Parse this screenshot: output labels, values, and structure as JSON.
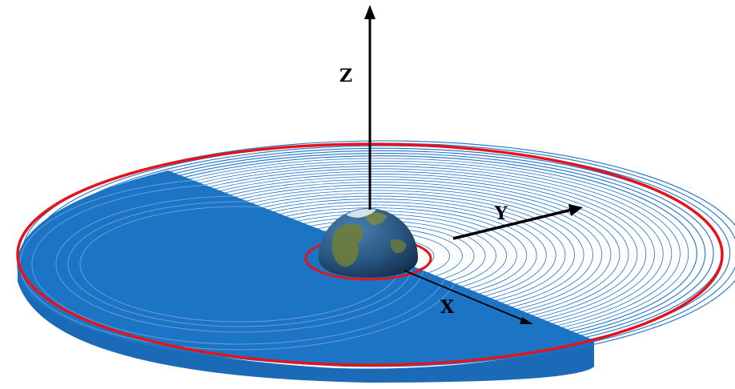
{
  "axes": {
    "x_label": "X",
    "y_label": "Y",
    "z_label": "Z"
  },
  "colors": {
    "spiral": "#1f73c7",
    "fill": "#1c74c4",
    "rim": "#1a63ad",
    "final_orbit": "#e3141b",
    "axis": "#000000",
    "background": "#ffffff"
  },
  "icons": {
    "earth": "earth-globe-icon"
  }
}
